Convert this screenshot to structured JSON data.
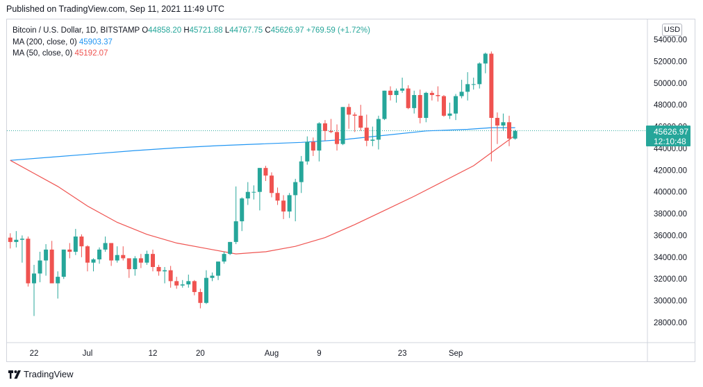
{
  "header": {
    "published": "Published on TradingView.com, Sep 11, 2021 11:49 UTC"
  },
  "legend": {
    "symbol": "Bitcoin / U.S. Dollar, 1D, BITSTAMP",
    "o_label": "O",
    "o_value": "44858.20",
    "h_label": "H",
    "h_value": "45721.88",
    "l_label": "L",
    "l_value": "44767.75",
    "c_label": "C",
    "c_value": "45626.97",
    "change": "+769.59 (+1.72%)",
    "ma200_label": "MA (200, close, 0)",
    "ma200_value": "45903.37",
    "ma50_label": "MA (50, close, 0)",
    "ma50_value": "45192.07"
  },
  "currency_button": "USD",
  "price_badge": {
    "price": "45626.97",
    "countdown": "12:10:48"
  },
  "footer": {
    "brand": "TradingView"
  },
  "colors": {
    "up": "#26a69a",
    "down": "#ef5350",
    "ma200": "#2196f3",
    "ma50": "#ef5350",
    "grid": "#f0f3fa"
  },
  "chart_data": {
    "type": "candlestick",
    "title": "Bitcoin / U.S. Dollar, 1D, BITSTAMP",
    "ylim": [
      27000,
      55000
    ],
    "y_ticks": [
      28000,
      30000,
      32000,
      34000,
      36000,
      38000,
      40000,
      42000,
      44000,
      46000,
      48000,
      50000,
      52000,
      54000
    ],
    "y_tick_labels": [
      "28000.00",
      "30000.00",
      "32000.00",
      "34000.00",
      "36000.00",
      "38000.00",
      "40000.00",
      "42000.00",
      "44000.00",
      "46000.00",
      "48000.00",
      "50000.00",
      "52000.00",
      "54000.00"
    ],
    "x_labels": [
      {
        "text": "22",
        "date": "2021-06-22"
      },
      {
        "text": "Jul",
        "date": "2021-07-01"
      },
      {
        "text": "12",
        "date": "2021-07-12"
      },
      {
        "text": "20",
        "date": "2021-07-20"
      },
      {
        "text": "Aug",
        "date": "2021-08-01"
      },
      {
        "text": "9",
        "date": "2021-08-09"
      },
      {
        "text": "23",
        "date": "2021-08-23"
      },
      {
        "text": "Sep",
        "date": "2021-09-01"
      }
    ],
    "candles": [
      {
        "date": "2021-06-18",
        "o": 35800,
        "h": 36200,
        "l": 34800,
        "c": 35400
      },
      {
        "date": "2021-06-19",
        "o": 35400,
        "h": 36400,
        "l": 34900,
        "c": 35600
      },
      {
        "date": "2021-06-20",
        "o": 35600,
        "h": 36000,
        "l": 33500,
        "c": 35700
      },
      {
        "date": "2021-06-21",
        "o": 35700,
        "h": 35900,
        "l": 31300,
        "c": 31600
      },
      {
        "date": "2021-06-22",
        "o": 31600,
        "h": 33300,
        "l": 28600,
        "c": 32500
      },
      {
        "date": "2021-06-23",
        "o": 32500,
        "h": 34500,
        "l": 31700,
        "c": 33700
      },
      {
        "date": "2021-06-24",
        "o": 33700,
        "h": 35200,
        "l": 32300,
        "c": 34700
      },
      {
        "date": "2021-06-25",
        "o": 34700,
        "h": 35500,
        "l": 31600,
        "c": 31600
      },
      {
        "date": "2021-06-26",
        "o": 31600,
        "h": 32700,
        "l": 30200,
        "c": 32200
      },
      {
        "date": "2021-06-27",
        "o": 32200,
        "h": 34700,
        "l": 32000,
        "c": 34700
      },
      {
        "date": "2021-06-28",
        "o": 34700,
        "h": 35300,
        "l": 33900,
        "c": 34500
      },
      {
        "date": "2021-06-29",
        "o": 34500,
        "h": 36600,
        "l": 34200,
        "c": 35900
      },
      {
        "date": "2021-06-30",
        "o": 35900,
        "h": 36100,
        "l": 34000,
        "c": 35000
      },
      {
        "date": "2021-07-01",
        "o": 35000,
        "h": 35100,
        "l": 32700,
        "c": 33500
      },
      {
        "date": "2021-07-02",
        "o": 33500,
        "h": 33900,
        "l": 32700,
        "c": 33800
      },
      {
        "date": "2021-07-03",
        "o": 33800,
        "h": 34900,
        "l": 33400,
        "c": 34700
      },
      {
        "date": "2021-07-04",
        "o": 34700,
        "h": 35900,
        "l": 34500,
        "c": 35300
      },
      {
        "date": "2021-07-05",
        "o": 35300,
        "h": 35300,
        "l": 33200,
        "c": 33700
      },
      {
        "date": "2021-07-06",
        "o": 33700,
        "h": 35000,
        "l": 33500,
        "c": 34200
      },
      {
        "date": "2021-07-07",
        "o": 34200,
        "h": 35000,
        "l": 33700,
        "c": 33900
      },
      {
        "date": "2021-07-08",
        "o": 33900,
        "h": 33900,
        "l": 32100,
        "c": 32900
      },
      {
        "date": "2021-07-09",
        "o": 32900,
        "h": 34100,
        "l": 32300,
        "c": 33900
      },
      {
        "date": "2021-07-10",
        "o": 33900,
        "h": 34300,
        "l": 33000,
        "c": 33500
      },
      {
        "date": "2021-07-11",
        "o": 33500,
        "h": 34600,
        "l": 33300,
        "c": 34300
      },
      {
        "date": "2021-07-12",
        "o": 34300,
        "h": 34700,
        "l": 32700,
        "c": 33100
      },
      {
        "date": "2021-07-13",
        "o": 33100,
        "h": 33300,
        "l": 32300,
        "c": 32700
      },
      {
        "date": "2021-07-14",
        "o": 32700,
        "h": 33100,
        "l": 31600,
        "c": 32800
      },
      {
        "date": "2021-07-15",
        "o": 32800,
        "h": 33200,
        "l": 31200,
        "c": 31800
      },
      {
        "date": "2021-07-16",
        "o": 31800,
        "h": 32200,
        "l": 31100,
        "c": 31400
      },
      {
        "date": "2021-07-17",
        "o": 31400,
        "h": 31900,
        "l": 31200,
        "c": 31500
      },
      {
        "date": "2021-07-18",
        "o": 31500,
        "h": 32400,
        "l": 31200,
        "c": 31800
      },
      {
        "date": "2021-07-19",
        "o": 31800,
        "h": 31900,
        "l": 30500,
        "c": 30800
      },
      {
        "date": "2021-07-20",
        "o": 30800,
        "h": 31100,
        "l": 29300,
        "c": 29800
      },
      {
        "date": "2021-07-21",
        "o": 29800,
        "h": 32800,
        "l": 29700,
        "c": 32100
      },
      {
        "date": "2021-07-22",
        "o": 32100,
        "h": 32600,
        "l": 31800,
        "c": 32300
      },
      {
        "date": "2021-07-23",
        "o": 32300,
        "h": 33600,
        "l": 31900,
        "c": 33600
      },
      {
        "date": "2021-07-24",
        "o": 33600,
        "h": 34500,
        "l": 33400,
        "c": 34300
      },
      {
        "date": "2021-07-25",
        "o": 34300,
        "h": 35400,
        "l": 34200,
        "c": 35400
      },
      {
        "date": "2021-07-26",
        "o": 35400,
        "h": 40500,
        "l": 35200,
        "c": 37300
      },
      {
        "date": "2021-07-27",
        "o": 37300,
        "h": 39500,
        "l": 36400,
        "c": 39400
      },
      {
        "date": "2021-07-28",
        "o": 39400,
        "h": 40900,
        "l": 38800,
        "c": 40000
      },
      {
        "date": "2021-07-29",
        "o": 40000,
        "h": 40600,
        "l": 39300,
        "c": 40000
      },
      {
        "date": "2021-07-30",
        "o": 40000,
        "h": 42200,
        "l": 38300,
        "c": 42200
      },
      {
        "date": "2021-07-31",
        "o": 42200,
        "h": 42400,
        "l": 41000,
        "c": 41500
      },
      {
        "date": "2021-08-01",
        "o": 41500,
        "h": 41800,
        "l": 39500,
        "c": 39900
      },
      {
        "date": "2021-08-02",
        "o": 39900,
        "h": 40400,
        "l": 38800,
        "c": 39200
      },
      {
        "date": "2021-08-03",
        "o": 39200,
        "h": 39700,
        "l": 37500,
        "c": 38200
      },
      {
        "date": "2021-08-04",
        "o": 38200,
        "h": 39900,
        "l": 37600,
        "c": 39700
      },
      {
        "date": "2021-08-05",
        "o": 39700,
        "h": 41200,
        "l": 37300,
        "c": 40900
      },
      {
        "date": "2021-08-06",
        "o": 40900,
        "h": 43300,
        "l": 39900,
        "c": 42800
      },
      {
        "date": "2021-08-07",
        "o": 42800,
        "h": 45100,
        "l": 42500,
        "c": 44600
      },
      {
        "date": "2021-08-08",
        "o": 44600,
        "h": 45000,
        "l": 43300,
        "c": 43800
      },
      {
        "date": "2021-08-09",
        "o": 43800,
        "h": 46400,
        "l": 42800,
        "c": 46300
      },
      {
        "date": "2021-08-10",
        "o": 46300,
        "h": 46600,
        "l": 44700,
        "c": 45600
      },
      {
        "date": "2021-08-11",
        "o": 45600,
        "h": 46700,
        "l": 45400,
        "c": 45500
      },
      {
        "date": "2021-08-12",
        "o": 45500,
        "h": 46200,
        "l": 43800,
        "c": 44400
      },
      {
        "date": "2021-08-13",
        "o": 44400,
        "h": 47800,
        "l": 44300,
        "c": 47800
      },
      {
        "date": "2021-08-14",
        "o": 47800,
        "h": 48100,
        "l": 45800,
        "c": 47100
      },
      {
        "date": "2021-08-15",
        "o": 47100,
        "h": 47300,
        "l": 45500,
        "c": 47000
      },
      {
        "date": "2021-08-16",
        "o": 47000,
        "h": 48000,
        "l": 45600,
        "c": 45900
      },
      {
        "date": "2021-08-17",
        "o": 45900,
        "h": 47100,
        "l": 44200,
        "c": 44700
      },
      {
        "date": "2021-08-18",
        "o": 44700,
        "h": 46000,
        "l": 44200,
        "c": 44800
      },
      {
        "date": "2021-08-19",
        "o": 44800,
        "h": 47000,
        "l": 43900,
        "c": 46700
      },
      {
        "date": "2021-08-20",
        "o": 46700,
        "h": 49300,
        "l": 46600,
        "c": 49300
      },
      {
        "date": "2021-08-21",
        "o": 49300,
        "h": 49700,
        "l": 48400,
        "c": 48900
      },
      {
        "date": "2021-08-22",
        "o": 48900,
        "h": 49500,
        "l": 48200,
        "c": 49300
      },
      {
        "date": "2021-08-23",
        "o": 49300,
        "h": 50500,
        "l": 49100,
        "c": 49500
      },
      {
        "date": "2021-08-24",
        "o": 49500,
        "h": 49800,
        "l": 47600,
        "c": 47700
      },
      {
        "date": "2021-08-25",
        "o": 47700,
        "h": 49300,
        "l": 47200,
        "c": 48900
      },
      {
        "date": "2021-08-26",
        "o": 48900,
        "h": 49400,
        "l": 46300,
        "c": 46800
      },
      {
        "date": "2021-08-27",
        "o": 46800,
        "h": 49200,
        "l": 46400,
        "c": 49100
      },
      {
        "date": "2021-08-28",
        "o": 49100,
        "h": 49300,
        "l": 48400,
        "c": 48900
      },
      {
        "date": "2021-08-29",
        "o": 48900,
        "h": 49700,
        "l": 48300,
        "c": 48800
      },
      {
        "date": "2021-08-30",
        "o": 48800,
        "h": 48900,
        "l": 46900,
        "c": 47000
      },
      {
        "date": "2021-08-31",
        "o": 47000,
        "h": 48200,
        "l": 46700,
        "c": 47200
      },
      {
        "date": "2021-09-01",
        "o": 47200,
        "h": 49000,
        "l": 46600,
        "c": 48800
      },
      {
        "date": "2021-09-02",
        "o": 48800,
        "h": 50300,
        "l": 48600,
        "c": 49200
      },
      {
        "date": "2021-09-03",
        "o": 49200,
        "h": 51000,
        "l": 48400,
        "c": 49900
      },
      {
        "date": "2021-09-04",
        "o": 49900,
        "h": 50500,
        "l": 49400,
        "c": 49900
      },
      {
        "date": "2021-09-05",
        "o": 49900,
        "h": 51900,
        "l": 49500,
        "c": 51800
      },
      {
        "date": "2021-09-06",
        "o": 51800,
        "h": 52800,
        "l": 50900,
        "c": 52700
      },
      {
        "date": "2021-09-07",
        "o": 52700,
        "h": 52900,
        "l": 42800,
        "c": 46800
      },
      {
        "date": "2021-09-08",
        "o": 46800,
        "h": 47300,
        "l": 44400,
        "c": 46100
      },
      {
        "date": "2021-09-09",
        "o": 46100,
        "h": 47200,
        "l": 45600,
        "c": 46400
      },
      {
        "date": "2021-09-10",
        "o": 46400,
        "h": 47000,
        "l": 44200,
        "c": 44900
      },
      {
        "date": "2021-09-11",
        "o": 44900,
        "h": 45700,
        "l": 44800,
        "c": 45600
      }
    ],
    "ma200": [
      {
        "date": "2021-06-18",
        "v": 42900
      },
      {
        "date": "2021-06-25",
        "v": 43200
      },
      {
        "date": "2021-07-02",
        "v": 43500
      },
      {
        "date": "2021-07-09",
        "v": 43800
      },
      {
        "date": "2021-07-16",
        "v": 44050
      },
      {
        "date": "2021-07-23",
        "v": 44250
      },
      {
        "date": "2021-07-30",
        "v": 44400
      },
      {
        "date": "2021-08-06",
        "v": 44550
      },
      {
        "date": "2021-08-13",
        "v": 44800
      },
      {
        "date": "2021-08-20",
        "v": 45200
      },
      {
        "date": "2021-08-27",
        "v": 45600
      },
      {
        "date": "2021-09-03",
        "v": 45750
      },
      {
        "date": "2021-09-07",
        "v": 45900
      },
      {
        "date": "2021-09-11",
        "v": 45903
      }
    ],
    "ma50": [
      {
        "date": "2021-06-18",
        "v": 42900
      },
      {
        "date": "2021-06-22",
        "v": 41700
      },
      {
        "date": "2021-06-26",
        "v": 40500
      },
      {
        "date": "2021-07-01",
        "v": 38700
      },
      {
        "date": "2021-07-06",
        "v": 37200
      },
      {
        "date": "2021-07-11",
        "v": 36100
      },
      {
        "date": "2021-07-16",
        "v": 35300
      },
      {
        "date": "2021-07-21",
        "v": 34800
      },
      {
        "date": "2021-07-26",
        "v": 34300
      },
      {
        "date": "2021-07-31",
        "v": 34500
      },
      {
        "date": "2021-08-05",
        "v": 35000
      },
      {
        "date": "2021-08-10",
        "v": 35800
      },
      {
        "date": "2021-08-15",
        "v": 37000
      },
      {
        "date": "2021-08-20",
        "v": 38300
      },
      {
        "date": "2021-08-25",
        "v": 39600
      },
      {
        "date": "2021-08-30",
        "v": 41000
      },
      {
        "date": "2021-09-04",
        "v": 42400
      },
      {
        "date": "2021-09-08",
        "v": 44000
      },
      {
        "date": "2021-09-11",
        "v": 45192
      }
    ],
    "last_price_line": 45627,
    "grid": false,
    "legend_position": "top-left"
  }
}
